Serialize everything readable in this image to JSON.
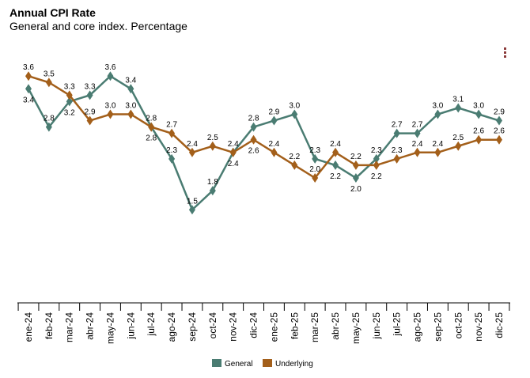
{
  "chart_data": {
    "type": "line",
    "title": "Annual CPI Rate",
    "subtitle": "General and core index. Percentage",
    "categories": [
      "ene-24",
      "feb-24",
      "mar-24",
      "abr-24",
      "may-24",
      "jun-24",
      "jul-24",
      "ago-24",
      "sep-24",
      "oct-24",
      "nov-24",
      "dic-24",
      "ene-25",
      "feb-25",
      "mar-25",
      "abr-25",
      "may-25",
      "jun-25",
      "jul-25",
      "ago-25",
      "sep-25",
      "oct-25",
      "nov-25",
      "dic-25"
    ],
    "series": [
      {
        "name": "General",
        "color": "#4a7c72",
        "values": [
          3.4,
          2.8,
          3.2,
          3.3,
          3.6,
          3.4,
          2.8,
          2.3,
          1.5,
          1.8,
          2.4,
          2.8,
          2.9,
          3.0,
          2.3,
          2.2,
          2.0,
          2.3,
          2.7,
          2.7,
          3.0,
          3.1,
          3.0,
          2.9
        ]
      },
      {
        "name": "Underlying",
        "color": "#a35f1a",
        "values": [
          3.6,
          3.5,
          3.3,
          2.9,
          3.0,
          3.0,
          2.8,
          2.7,
          2.4,
          2.5,
          2.4,
          2.6,
          2.4,
          2.2,
          2.0,
          2.4,
          2.2,
          2.2,
          2.3,
          2.4,
          2.4,
          2.5,
          2.6,
          2.6
        ]
      }
    ],
    "ylim": [
      0,
      4
    ],
    "grid": false,
    "legend": "bottom-center",
    "data_labels": true
  },
  "menu_icon": "vertical-dots-icon"
}
